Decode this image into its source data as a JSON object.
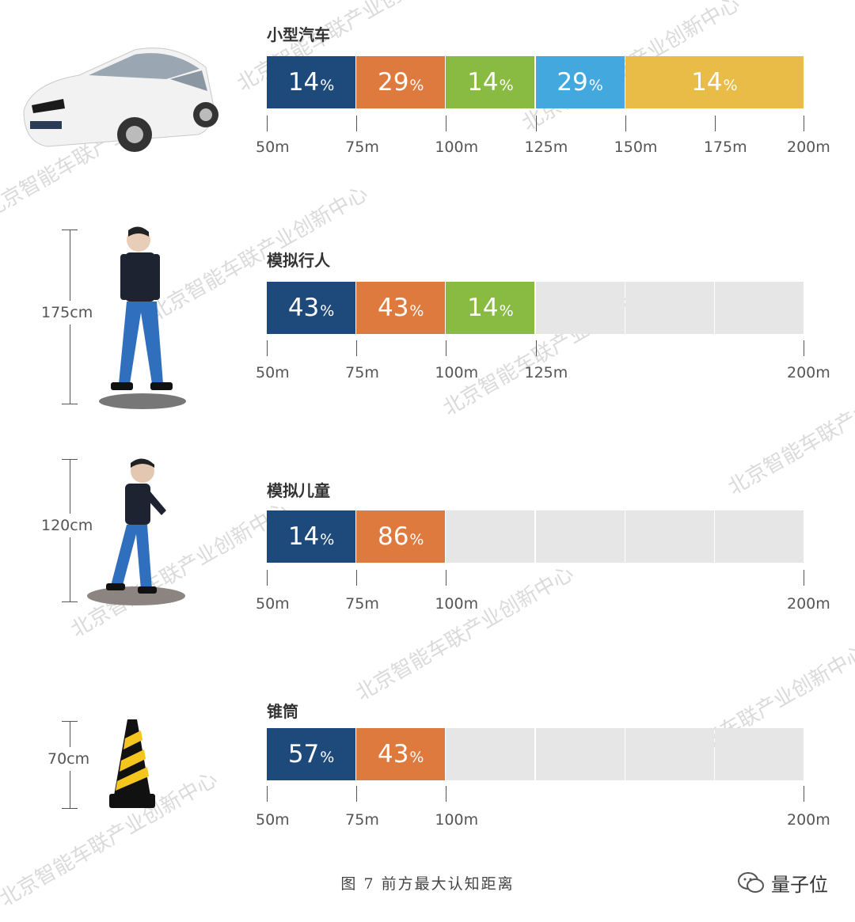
{
  "colors": {
    "c50_75": "#1e4a7b",
    "c75_100": "#df7a3f",
    "c100_125": "#89bb42",
    "c125_150": "#42a8dd",
    "c150_200": "#e9bb47",
    "empty": "#e6e6e6"
  },
  "chart_data": [
    {
      "type": "bar",
      "title": "小型汽车",
      "unit_suffix": "%",
      "axis_ticks": [
        "50m",
        "75m",
        "100m",
        "125m",
        "150m",
        "175m",
        "200m"
      ],
      "segments": [
        {
          "from": 50,
          "to": 75,
          "value": 14,
          "label": "14"
        },
        {
          "from": 75,
          "to": 100,
          "value": 29,
          "label": "29"
        },
        {
          "from": 100,
          "to": 125,
          "value": 14,
          "label": "14"
        },
        {
          "from": 125,
          "to": 150,
          "value": 29,
          "label": "29"
        },
        {
          "from": 150,
          "to": 200,
          "value": 14,
          "label": "14"
        }
      ],
      "xlim": [
        50,
        200
      ]
    },
    {
      "type": "bar",
      "title": "模拟行人",
      "height_label": "175cm",
      "unit_suffix": "%",
      "axis_ticks": [
        "50m",
        "75m",
        "100m",
        "125m",
        "200m"
      ],
      "segments": [
        {
          "from": 50,
          "to": 75,
          "value": 43,
          "label": "43"
        },
        {
          "from": 75,
          "to": 100,
          "value": 43,
          "label": "43"
        },
        {
          "from": 100,
          "to": 125,
          "value": 14,
          "label": "14"
        }
      ],
      "xlim": [
        50,
        200
      ]
    },
    {
      "type": "bar",
      "title": "模拟儿童",
      "height_label": "120cm",
      "unit_suffix": "%",
      "axis_ticks": [
        "50m",
        "75m",
        "100m",
        "200m"
      ],
      "segments": [
        {
          "from": 50,
          "to": 75,
          "value": 14,
          "label": "14"
        },
        {
          "from": 75,
          "to": 100,
          "value": 86,
          "label": "86"
        }
      ],
      "xlim": [
        50,
        200
      ]
    },
    {
      "type": "bar",
      "title": "锥筒",
      "height_label": "70cm",
      "unit_suffix": "%",
      "axis_ticks": [
        "50m",
        "75m",
        "100m",
        "200m"
      ],
      "segments": [
        {
          "from": 50,
          "to": 75,
          "value": 57,
          "label": "57"
        },
        {
          "from": 75,
          "to": 100,
          "value": 43,
          "label": "43"
        }
      ],
      "xlim": [
        50,
        200
      ]
    }
  ],
  "caption": "图 7  前方最大认知距离",
  "brand": "量子位",
  "watermark": "北京智能车联产业创新中心"
}
